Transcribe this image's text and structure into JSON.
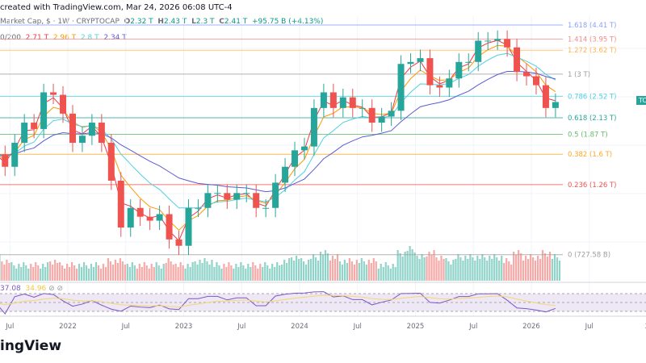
{
  "header": {
    "created": "created with TradingView.com, Mar 24, 2026 06:08 UTC-4"
  },
  "legend": {
    "symbol": "Market Cap, $ · 1W · CRYPTOCAP",
    "o_label": "O",
    "o": "2.32 T",
    "h_label": "H",
    "h": "2.43 T",
    "l_label": "L",
    "l": "2.3 T",
    "c_label": "C",
    "c": "2.41 T",
    "change": "+95.75 B (+4.13%)"
  },
  "ma_legend": {
    "label": "0/200",
    "values": [
      "2.71 T",
      "2.96 T",
      "2.8 T",
      "2.34 T"
    ],
    "colors": [
      "#f23645",
      "#ff9800",
      "#4dd0e1",
      "#5b5bd6"
    ]
  },
  "rsi_legend": {
    "values": [
      "37.08",
      "34.96"
    ],
    "colors": [
      "#7e57c2",
      "#f5c542"
    ]
  },
  "price_badge": "TC",
  "logo": "ingView",
  "chart_data": {
    "type": "candlestick",
    "scale": "log",
    "interval": "1W",
    "unit": "T",
    "fib_levels": [
      {
        "level": "1.618",
        "value": 4.41,
        "label": "1.618 (4.41 T)",
        "color": "#8c9eff"
      },
      {
        "level": "1.414",
        "value": 3.95,
        "label": "1.414 (3.95 T)",
        "color": "#f28b8b"
      },
      {
        "level": "1.272",
        "value": 3.62,
        "label": "1.272 (3.62 T)",
        "color": "#ffb74d"
      },
      {
        "level": "1",
        "value": 3.0,
        "label": "1 (3 T)",
        "color": "#9e9e9e"
      },
      {
        "level": "0.786",
        "value": 2.52,
        "label": "0.786 (2.52 T)",
        "color": "#4dd0e1"
      },
      {
        "level": "0.618",
        "value": 2.13,
        "label": "0.618 (2.13 T)",
        "color": "#26a69a"
      },
      {
        "level": "0.5",
        "value": 1.87,
        "label": "0.5 (1.87 T)",
        "color": "#66bb6a"
      },
      {
        "level": "0.382",
        "value": 1.6,
        "label": "0.382 (1.6 T)",
        "color": "#ffa726"
      },
      {
        "level": "0.236",
        "value": 1.26,
        "label": "0.236 (1.26 T)",
        "color": "#ef5350"
      },
      {
        "level": "0",
        "value": 0.7276,
        "label": "0 (727.58 B)",
        "color": "#9e9e9e"
      }
    ],
    "x_ticks": [
      {
        "label": "Jul",
        "t": 2021.5
      },
      {
        "label": "2022",
        "t": 2022
      },
      {
        "label": "Jul",
        "t": 2022.5
      },
      {
        "label": "2023",
        "t": 2023
      },
      {
        "label": "Jul",
        "t": 2023.5
      },
      {
        "label": "2024",
        "t": 2024
      },
      {
        "label": "Jul",
        "t": 2024.5
      },
      {
        "label": "2025",
        "t": 2025
      },
      {
        "label": "Jul",
        "t": 2025.5
      },
      {
        "label": "2026",
        "t": 2026
      },
      {
        "label": "Jul",
        "t": 2026.5
      },
      {
        "label": "2",
        "t": 2027
      }
    ],
    "start": "2021-05",
    "closes": [
      1.6,
      1.45,
      1.75,
      2.05,
      1.95,
      2.6,
      2.55,
      2.2,
      1.75,
      1.85,
      2.05,
      1.75,
      1.3,
      0.9,
      1.05,
      0.98,
      0.95,
      1.0,
      0.82,
      0.78,
      1.05,
      1.05,
      1.18,
      1.18,
      1.12,
      1.18,
      1.18,
      1.05,
      1.05,
      1.28,
      1.45,
      1.65,
      1.7,
      2.3,
      2.6,
      2.3,
      2.5,
      2.3,
      2.3,
      2.05,
      2.15,
      2.25,
      3.25,
      3.3,
      3.4,
      2.75,
      2.7,
      2.9,
      3.3,
      3.3,
      3.9,
      3.9,
      3.95,
      3.7,
      3.05,
      2.95,
      2.75,
      2.3,
      2.41
    ],
    "volume": [
      5,
      4,
      3,
      3,
      3,
      3,
      4,
      3,
      3,
      3,
      3,
      3,
      4,
      4,
      3,
      3,
      3,
      3,
      4,
      3,
      3,
      4,
      4,
      3,
      3,
      3,
      3,
      3,
      3,
      3,
      4,
      5,
      4,
      5,
      6,
      5,
      4,
      4,
      4,
      4,
      3,
      3,
      6,
      7,
      5,
      6,
      5,
      4,
      5,
      5,
      5,
      5,
      5,
      4,
      6,
      5,
      5,
      6,
      5
    ]
  }
}
